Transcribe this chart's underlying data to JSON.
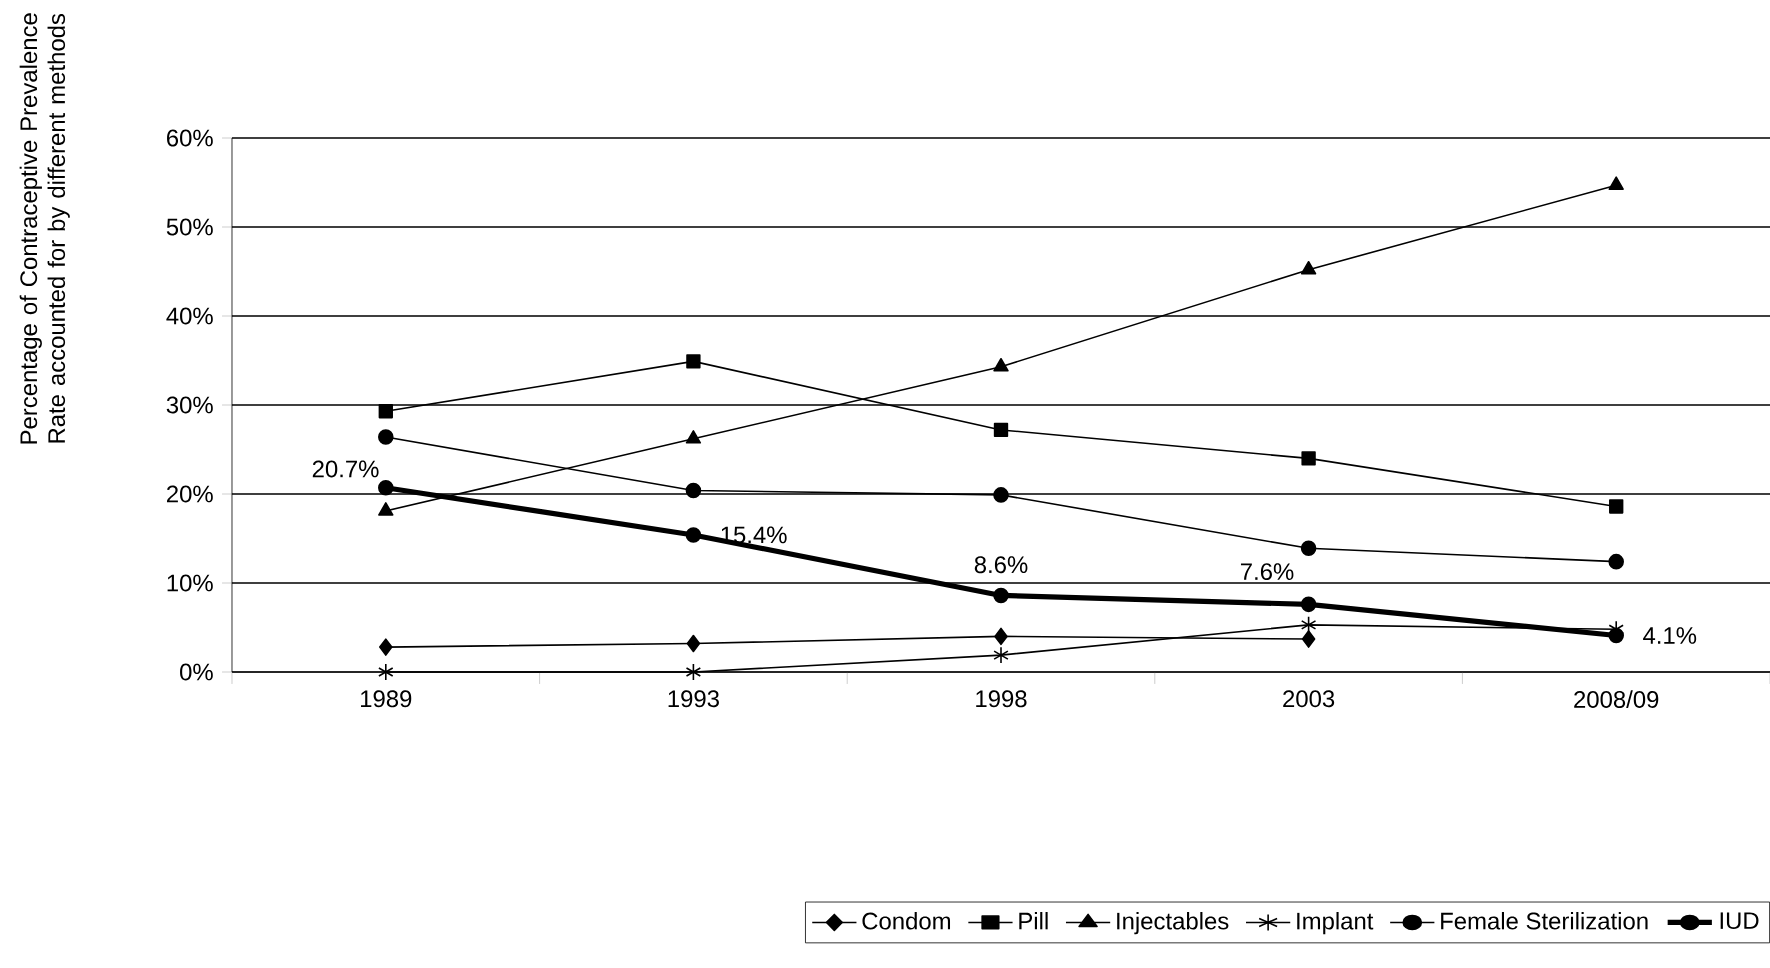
{
  "chart_data": {
    "type": "line",
    "ylabel": "Percentage of Contraceptive Prevalence Rate accounted for by different methods",
    "categories": [
      "1989",
      "1993",
      "1998",
      "2003",
      "2008/09"
    ],
    "series": [
      {
        "name": "Condom",
        "color": "#000000",
        "marker": "diamond",
        "values": [
          2.8,
          3.2,
          4.0,
          3.7,
          null
        ]
      },
      {
        "name": "Pill",
        "color": "#000000",
        "marker": "square",
        "values": [
          29.3,
          34.9,
          27.2,
          24.0,
          18.6
        ]
      },
      {
        "name": "Injectables",
        "color": "#000000",
        "marker": "triangle",
        "values": [
          18.1,
          26.2,
          34.3,
          45.2,
          54.7
        ]
      },
      {
        "name": "Implant",
        "color": "#000000",
        "marker": "cross",
        "values": [
          0,
          0,
          1.9,
          5.3,
          4.8
        ]
      },
      {
        "name": "Female Sterilization",
        "color": "#000000",
        "marker": "circle",
        "values": [
          26.4,
          20.4,
          19.9,
          13.9,
          12.4
        ]
      },
      {
        "name": "IUD",
        "color": "#000000",
        "marker": "circle",
        "values": [
          20.7,
          15.4,
          8.6,
          7.6,
          4.1
        ],
        "value_labels": [
          "20.7%",
          "15.4%",
          "8.6%",
          "7.6%",
          "4.1%"
        ]
      }
    ],
    "ylim": [
      0,
      60
    ],
    "yticks": [
      {
        "value": 0,
        "label": "0%"
      },
      {
        "value": 10,
        "label": "10%"
      },
      {
        "value": 20,
        "label": "20%"
      },
      {
        "value": 30,
        "label": "30%"
      },
      {
        "value": 40,
        "label": "40%"
      },
      {
        "value": 50,
        "label": "50%"
      },
      {
        "value": 60,
        "label": "60%"
      }
    ],
    "grid": "y",
    "legend": "bottom",
    "line_style": "solid"
  }
}
